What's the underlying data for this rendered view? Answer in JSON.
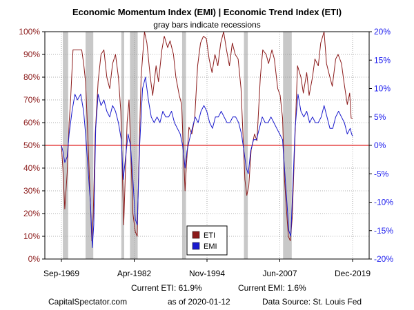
{
  "chart_data": {
    "type": "line",
    "title": "Economic Momentum Index (EMI) | Economic Trend Index (ETI)",
    "subtitle": "gray bars indicate recessions",
    "x_ticks": [
      "Sep-1969",
      "Apr-1982",
      "Nov-1994",
      "Jun-2007",
      "Dec-2019"
    ],
    "x_range": [
      "1969-09",
      "2019-12"
    ],
    "left_axis": {
      "ticks": [
        "0%",
        "10%",
        "20%",
        "30%",
        "40%",
        "50%",
        "60%",
        "70%",
        "80%",
        "90%",
        "100%"
      ],
      "ylim": [
        0,
        100
      ]
    },
    "right_axis": {
      "ticks": [
        "-20%",
        "-15%",
        "-10%",
        "-5%",
        "0%",
        "5%",
        "10%",
        "15%",
        "20%"
      ],
      "ylim": [
        -20,
        20
      ]
    },
    "reference_line": {
      "axis": "left",
      "value": 50
    },
    "recessions": [
      [
        "1969-12",
        "1970-11"
      ],
      [
        "1973-11",
        "1975-03"
      ],
      [
        "1980-01",
        "1980-07"
      ],
      [
        "1981-07",
        "1982-11"
      ],
      [
        "1990-07",
        "1991-03"
      ],
      [
        "2001-03",
        "2001-11"
      ],
      [
        "2007-12",
        "2009-06"
      ]
    ],
    "grid": true,
    "legend_position": "bottom-center",
    "series": [
      {
        "name": "ETI",
        "axis": "left",
        "color": "#8b1a1a",
        "points": [
          [
            "1969-09",
            50
          ],
          [
            "1969-12",
            40
          ],
          [
            "1970-04",
            22
          ],
          [
            "1970-09",
            38
          ],
          [
            "1971-01",
            60
          ],
          [
            "1971-04",
            70
          ],
          [
            "1971-09",
            92
          ],
          [
            "1972-06",
            92
          ],
          [
            "1973-03",
            92
          ],
          [
            "1973-07",
            86
          ],
          [
            "1973-11",
            78
          ],
          [
            "1974-03",
            58
          ],
          [
            "1974-08",
            30
          ],
          [
            "1974-12",
            8
          ],
          [
            "1975-03",
            20
          ],
          [
            "1975-07",
            55
          ],
          [
            "1976-01",
            78
          ],
          [
            "1976-07",
            90
          ],
          [
            "1977-01",
            92
          ],
          [
            "1977-07",
            80
          ],
          [
            "1978-01",
            75
          ],
          [
            "1978-07",
            86
          ],
          [
            "1979-01",
            90
          ],
          [
            "1979-07",
            80
          ],
          [
            "1979-12",
            65
          ],
          [
            "1980-03",
            40
          ],
          [
            "1980-06",
            15
          ],
          [
            "1980-09",
            35
          ],
          [
            "1981-01",
            60
          ],
          [
            "1981-05",
            70
          ],
          [
            "1981-09",
            45
          ],
          [
            "1982-01",
            20
          ],
          [
            "1982-06",
            12
          ],
          [
            "1982-10",
            10
          ],
          [
            "1983-01",
            40
          ],
          [
            "1983-06",
            80
          ],
          [
            "1984-01",
            100
          ],
          [
            "1984-06",
            95
          ],
          [
            "1985-01",
            80
          ],
          [
            "1985-06",
            72
          ],
          [
            "1986-01",
            85
          ],
          [
            "1986-06",
            78
          ],
          [
            "1987-01",
            92
          ],
          [
            "1987-06",
            98
          ],
          [
            "1988-01",
            93
          ],
          [
            "1988-06",
            96
          ],
          [
            "1989-01",
            90
          ],
          [
            "1989-06",
            80
          ],
          [
            "1990-01",
            72
          ],
          [
            "1990-06",
            68
          ],
          [
            "1990-10",
            45
          ],
          [
            "1991-01",
            30
          ],
          [
            "1991-04",
            42
          ],
          [
            "1991-09",
            58
          ],
          [
            "1992-03",
            55
          ],
          [
            "1992-09",
            62
          ],
          [
            "1993-03",
            85
          ],
          [
            "1993-09",
            95
          ],
          [
            "1994-03",
            98
          ],
          [
            "1994-09",
            97
          ],
          [
            "1995-03",
            88
          ],
          [
            "1995-09",
            82
          ],
          [
            "1996-03",
            90
          ],
          [
            "1996-09",
            85
          ],
          [
            "1997-03",
            95
          ],
          [
            "1997-09",
            100
          ],
          [
            "1998-03",
            92
          ],
          [
            "1998-09",
            85
          ],
          [
            "1999-03",
            95
          ],
          [
            "1999-09",
            90
          ],
          [
            "2000-03",
            88
          ],
          [
            "2000-09",
            75
          ],
          [
            "2001-01",
            55
          ],
          [
            "2001-05",
            35
          ],
          [
            "2001-09",
            28
          ],
          [
            "2002-01",
            32
          ],
          [
            "2002-06",
            48
          ],
          [
            "2003-01",
            55
          ],
          [
            "2003-06",
            52
          ],
          [
            "2004-01",
            80
          ],
          [
            "2004-06",
            92
          ],
          [
            "2005-01",
            90
          ],
          [
            "2005-06",
            86
          ],
          [
            "2006-01",
            92
          ],
          [
            "2006-06",
            88
          ],
          [
            "2007-01",
            75
          ],
          [
            "2007-06",
            72
          ],
          [
            "2007-11",
            62
          ],
          [
            "2008-03",
            35
          ],
          [
            "2008-07",
            22
          ],
          [
            "2008-11",
            10
          ],
          [
            "2009-03",
            8
          ],
          [
            "2009-07",
            18
          ],
          [
            "2010-01",
            55
          ],
          [
            "2010-06",
            85
          ],
          [
            "2011-01",
            80
          ],
          [
            "2011-06",
            73
          ],
          [
            "2012-01",
            82
          ],
          [
            "2012-06",
            72
          ],
          [
            "2013-01",
            80
          ],
          [
            "2013-06",
            88
          ],
          [
            "2014-01",
            85
          ],
          [
            "2014-06",
            95
          ],
          [
            "2015-01",
            100
          ],
          [
            "2015-06",
            86
          ],
          [
            "2016-01",
            80
          ],
          [
            "2016-06",
            76
          ],
          [
            "2017-01",
            88
          ],
          [
            "2017-06",
            90
          ],
          [
            "2018-01",
            86
          ],
          [
            "2018-06",
            78
          ],
          [
            "2019-01",
            68
          ],
          [
            "2019-06",
            73
          ],
          [
            "2019-09",
            62
          ],
          [
            "2019-12",
            61.9
          ]
        ]
      },
      {
        "name": "EMI",
        "axis": "right",
        "color": "#1a1acd",
        "points": [
          [
            "1969-09",
            0
          ],
          [
            "1969-12",
            -1
          ],
          [
            "1970-04",
            -3
          ],
          [
            "1970-09",
            -2
          ],
          [
            "1971-01",
            2
          ],
          [
            "1971-07",
            6
          ],
          [
            "1972-01",
            9
          ],
          [
            "1972-06",
            8
          ],
          [
            "1973-01",
            9
          ],
          [
            "1973-07",
            6
          ],
          [
            "1973-11",
            2
          ],
          [
            "1974-04",
            -4
          ],
          [
            "1974-09",
            -10
          ],
          [
            "1975-01",
            -18
          ],
          [
            "1975-04",
            -14
          ],
          [
            "1975-08",
            3
          ],
          [
            "1976-01",
            9
          ],
          [
            "1976-07",
            7
          ],
          [
            "1977-01",
            8
          ],
          [
            "1977-07",
            6
          ],
          [
            "1978-01",
            5
          ],
          [
            "1978-07",
            7
          ],
          [
            "1979-01",
            6
          ],
          [
            "1979-07",
            4
          ],
          [
            "1980-01",
            1
          ],
          [
            "1980-05",
            -6
          ],
          [
            "1980-10",
            -2
          ],
          [
            "1981-03",
            2
          ],
          [
            "1981-08",
            0
          ],
          [
            "1982-01",
            -6
          ],
          [
            "1982-06",
            -13
          ],
          [
            "1982-10",
            -14
          ],
          [
            "1983-03",
            0
          ],
          [
            "1983-09",
            10
          ],
          [
            "1984-03",
            12
          ],
          [
            "1984-09",
            8
          ],
          [
            "1985-03",
            5
          ],
          [
            "1985-09",
            4
          ],
          [
            "1986-03",
            5
          ],
          [
            "1986-09",
            4
          ],
          [
            "1987-03",
            6
          ],
          [
            "1987-09",
            5
          ],
          [
            "1988-03",
            5
          ],
          [
            "1988-09",
            6
          ],
          [
            "1989-03",
            4
          ],
          [
            "1989-09",
            3
          ],
          [
            "1990-03",
            2
          ],
          [
            "1990-08",
            0
          ],
          [
            "1991-01",
            -4
          ],
          [
            "1991-05",
            -1
          ],
          [
            "1991-10",
            1
          ],
          [
            "1992-04",
            3
          ],
          [
            "1992-10",
            5
          ],
          [
            "1993-04",
            4
          ],
          [
            "1993-10",
            6
          ],
          [
            "1994-04",
            7
          ],
          [
            "1994-10",
            6
          ],
          [
            "1995-04",
            4
          ],
          [
            "1995-10",
            3
          ],
          [
            "1996-04",
            5
          ],
          [
            "1996-10",
            5
          ],
          [
            "1997-04",
            6
          ],
          [
            "1997-10",
            5
          ],
          [
            "1998-04",
            4
          ],
          [
            "1998-10",
            4
          ],
          [
            "1999-04",
            5
          ],
          [
            "1999-10",
            5
          ],
          [
            "2000-04",
            4
          ],
          [
            "2000-10",
            2
          ],
          [
            "2001-03",
            -1
          ],
          [
            "2001-08",
            -4
          ],
          [
            "2001-12",
            -5
          ],
          [
            "2002-05",
            -1
          ],
          [
            "2002-11",
            1
          ],
          [
            "2003-05",
            1
          ],
          [
            "2003-11",
            3
          ],
          [
            "2004-05",
            5
          ],
          [
            "2004-11",
            4
          ],
          [
            "2005-05",
            4
          ],
          [
            "2005-11",
            5
          ],
          [
            "2006-05",
            4
          ],
          [
            "2006-11",
            3
          ],
          [
            "2007-05",
            2
          ],
          [
            "2007-11",
            1
          ],
          [
            "2008-03",
            -4
          ],
          [
            "2008-08",
            -10
          ],
          [
            "2008-12",
            -15
          ],
          [
            "2009-04",
            -16
          ],
          [
            "2009-08",
            -8
          ],
          [
            "2010-01",
            3
          ],
          [
            "2010-07",
            9
          ],
          [
            "2011-01",
            6
          ],
          [
            "2011-07",
            5
          ],
          [
            "2012-01",
            6
          ],
          [
            "2012-07",
            4
          ],
          [
            "2013-01",
            5
          ],
          [
            "2013-07",
            4
          ],
          [
            "2014-01",
            4
          ],
          [
            "2014-07",
            5
          ],
          [
            "2015-01",
            7
          ],
          [
            "2015-07",
            5
          ],
          [
            "2016-01",
            3
          ],
          [
            "2016-07",
            3
          ],
          [
            "2017-01",
            5
          ],
          [
            "2017-07",
            6
          ],
          [
            "2018-01",
            5
          ],
          [
            "2018-07",
            4
          ],
          [
            "2019-01",
            2
          ],
          [
            "2019-07",
            3
          ],
          [
            "2019-10",
            2
          ],
          [
            "2019-12",
            1.6
          ]
        ]
      }
    ]
  },
  "footer": {
    "current_eti": "Current ETI:  61.9%",
    "current_emi": "Current EMI:  1.6%",
    "site": "CapitalSpectator.com",
    "as_of": "as of 2020-01-12",
    "source": "Data Source: St. Louis Fed"
  },
  "colors": {
    "left_axis": "#8b1a1a",
    "right_axis": "#1a1aee",
    "reference_line": "#e02020",
    "recession": "#c8c8c8"
  }
}
